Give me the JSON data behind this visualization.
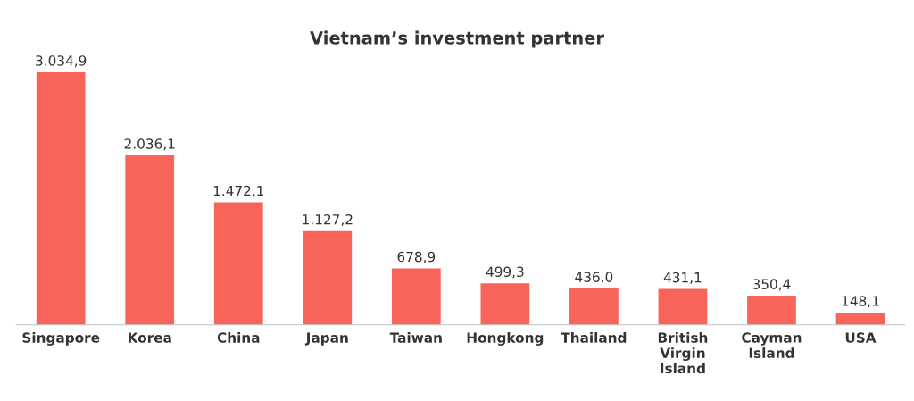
{
  "chart_data": {
    "type": "bar",
    "title": "Vietnam’s investment partner",
    "categories": [
      "Singapore",
      "Korea",
      "China",
      "Japan",
      "Taiwan",
      "Hongkong",
      "Thailand",
      "British\nVirgin\nIsland",
      "Cayman\nIsland",
      "USA"
    ],
    "values": [
      3034.9,
      2036.1,
      1472.1,
      1127.2,
      678.9,
      499.3,
      436.0,
      431.1,
      350.4,
      148.1
    ],
    "value_labels": [
      "3.034,9",
      "2.036,1",
      "1.472,1",
      "1.127,2",
      "678,9",
      "499,3",
      "436,0",
      "431,1",
      "350,4",
      "148,1"
    ],
    "color": "#f8635a",
    "grid": false,
    "legend": false
  }
}
